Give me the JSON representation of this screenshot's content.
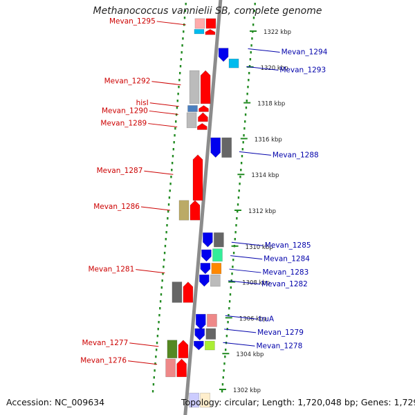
{
  "title": "Methanococcus vannielii SB, complete genome",
  "accession": "Accession: NC_009634",
  "topology": "Topology: circular; Length: 1,720,048 bp; Genes: 1,729",
  "colors": {
    "reverse_label": "#cc0000",
    "forward_label": "#0000aa",
    "ruler_dots": "#228b22",
    "backbone": "#8c8c8c"
  },
  "kbp_marks": [
    {
      "label": "1322 kbp",
      "kbp": 1322
    },
    {
      "label": "1320 kbp",
      "kbp": 1320
    },
    {
      "label": "1318 kbp",
      "kbp": 1318
    },
    {
      "label": "1316 kbp",
      "kbp": 1316
    },
    {
      "label": "1314 kbp",
      "kbp": 1314
    },
    {
      "label": "1312 kbp",
      "kbp": 1312
    },
    {
      "label": "1310 kbp",
      "kbp": 1310
    },
    {
      "label": "1308 kbp",
      "kbp": 1308
    },
    {
      "label": "1306 kbp",
      "kbp": 1306
    },
    {
      "label": "1304 kbp",
      "kbp": 1304
    },
    {
      "label": "1302 kbp",
      "kbp": 1302
    }
  ],
  "reverse_labels": [
    {
      "text": "Mevan_1295",
      "kbp": 1322.35
    },
    {
      "text": "Mevan_1292",
      "kbp": 1319.0
    },
    {
      "text": "hisI",
      "kbp": 1317.8
    },
    {
      "text": "Mevan_1290",
      "kbp": 1317.35
    },
    {
      "text": "Mevan_1289",
      "kbp": 1316.65
    },
    {
      "text": "Mevan_1287",
      "kbp": 1314.0
    },
    {
      "text": "Mevan_1286",
      "kbp": 1312.0
    },
    {
      "text": "Mevan_1281",
      "kbp": 1308.5
    },
    {
      "text": "Mevan_1277",
      "kbp": 1304.4
    },
    {
      "text": "Mevan_1276",
      "kbp": 1303.4
    }
  ],
  "forward_labels": [
    {
      "text": "Mevan_1294",
      "kbp": 1320.9
    },
    {
      "text": "Mevan_1293",
      "kbp": 1319.9
    },
    {
      "text": "Mevan_1288",
      "kbp": 1315.15
    },
    {
      "text": "Mevan_1285",
      "kbp": 1310.1
    },
    {
      "text": "Mevan_1284",
      "kbp": 1309.35
    },
    {
      "text": "Mevan_1283",
      "kbp": 1308.6
    },
    {
      "text": "Mevan_1282",
      "kbp": 1307.95
    },
    {
      "text": "truA",
      "kbp": 1306.0
    },
    {
      "text": "Mevan_1279",
      "kbp": 1305.25
    },
    {
      "text": "Mevan_1278",
      "kbp": 1304.5
    }
  ],
  "genes": [
    {
      "strand": "forward",
      "lane": 2,
      "start": 1322.15,
      "end": 1322.7,
      "color": "#ffaaaa",
      "arrow": false
    },
    {
      "strand": "forward",
      "lane": 1,
      "start": 1322.15,
      "end": 1322.7,
      "color": "#ff0000",
      "arrow": false
    },
    {
      "strand": "forward",
      "lane": 2,
      "start": 1321.85,
      "end": 1322.1,
      "color": "#00bbee",
      "arrow": false
    },
    {
      "strand": "forward",
      "lane": 1,
      "start": 1321.8,
      "end": 1322.1,
      "color": "#ff0000",
      "arrow": true
    },
    {
      "strand": "reverse",
      "lane": 1,
      "start": 1320.3,
      "end": 1321.05,
      "color": "#0000ee",
      "arrow": true
    },
    {
      "strand": "reverse",
      "lane": 2,
      "start": 1319.95,
      "end": 1320.45,
      "color": "#00bbee",
      "arrow": false
    },
    {
      "strand": "forward",
      "lane": 2,
      "start": 1317.95,
      "end": 1319.8,
      "color": "#bbbbbb",
      "arrow": false
    },
    {
      "strand": "forward",
      "lane": 1,
      "start": 1317.95,
      "end": 1319.8,
      "color": "#ff0000",
      "arrow": true
    },
    {
      "strand": "forward",
      "lane": 2,
      "start": 1317.5,
      "end": 1317.85,
      "color": "#4a7fbf",
      "arrow": false
    },
    {
      "strand": "forward",
      "lane": 1,
      "start": 1317.5,
      "end": 1317.85,
      "color": "#ff0000",
      "arrow": true
    },
    {
      "strand": "forward",
      "lane": 2,
      "start": 1316.6,
      "end": 1317.45,
      "color": "#bbbbbb",
      "arrow": false
    },
    {
      "strand": "forward",
      "lane": 1,
      "start": 1316.95,
      "end": 1317.45,
      "color": "#ff0000",
      "arrow": true
    },
    {
      "strand": "forward",
      "lane": 1,
      "start": 1316.5,
      "end": 1316.85,
      "color": "#ff0000",
      "arrow": true
    },
    {
      "strand": "reverse",
      "lane": 1,
      "start": 1314.95,
      "end": 1316.05,
      "color": "#0000ee",
      "arrow": true
    },
    {
      "strand": "reverse",
      "lane": 2,
      "start": 1314.95,
      "end": 1316.05,
      "color": "#666666",
      "arrow": false
    },
    {
      "strand": "forward",
      "lane": 1,
      "start": 1312.55,
      "end": 1315.1,
      "color": "#ff0000",
      "arrow": true
    },
    {
      "strand": "forward",
      "lane": 2,
      "start": 1311.45,
      "end": 1312.55,
      "color": "#bbaa66",
      "arrow": false
    },
    {
      "strand": "forward",
      "lane": 1,
      "start": 1311.45,
      "end": 1312.55,
      "color": "#ff0000",
      "arrow": true
    },
    {
      "strand": "reverse",
      "lane": 1,
      "start": 1309.95,
      "end": 1310.75,
      "color": "#0000ee",
      "arrow": true
    },
    {
      "strand": "reverse",
      "lane": 2,
      "start": 1309.95,
      "end": 1310.75,
      "color": "#666666",
      "arrow": false
    },
    {
      "strand": "reverse",
      "lane": 2,
      "start": 1309.15,
      "end": 1309.85,
      "color": "#33ee99",
      "arrow": false
    },
    {
      "strand": "reverse",
      "lane": 1,
      "start": 1309.15,
      "end": 1309.8,
      "color": "#0000ee",
      "arrow": true
    },
    {
      "strand": "reverse",
      "lane": 1,
      "start": 1308.45,
      "end": 1309.05,
      "color": "#0000ee",
      "arrow": true
    },
    {
      "strand": "reverse",
      "lane": 2,
      "start": 1308.45,
      "end": 1309.05,
      "color": "#ff8800",
      "arrow": false
    },
    {
      "strand": "reverse",
      "lane": 1,
      "start": 1307.75,
      "end": 1308.4,
      "color": "#0000ee",
      "arrow": true
    },
    {
      "strand": "reverse",
      "lane": 2,
      "start": 1307.75,
      "end": 1308.4,
      "color": "#bbbbbb",
      "arrow": false
    },
    {
      "strand": "forward",
      "lane": 2,
      "start": 1306.85,
      "end": 1308.0,
      "color": "#666666",
      "arrow": false
    },
    {
      "strand": "forward",
      "lane": 1,
      "start": 1306.85,
      "end": 1308.0,
      "color": "#ff0000",
      "arrow": true
    },
    {
      "strand": "reverse",
      "lane": 1,
      "start": 1305.35,
      "end": 1306.2,
      "color": "#0000ee",
      "arrow": true
    },
    {
      "strand": "reverse",
      "lane": 2,
      "start": 1305.5,
      "end": 1306.2,
      "color": "#ee8888",
      "arrow": false
    },
    {
      "strand": "reverse",
      "lane": 1,
      "start": 1304.75,
      "end": 1305.4,
      "color": "#0000ee",
      "arrow": true
    },
    {
      "strand": "reverse",
      "lane": 2,
      "start": 1304.8,
      "end": 1305.4,
      "color": "#666666",
      "arrow": false
    },
    {
      "strand": "reverse",
      "lane": 1,
      "start": 1304.2,
      "end": 1304.7,
      "color": "#0000ee",
      "arrow": true
    },
    {
      "strand": "reverse",
      "lane": 2,
      "start": 1304.2,
      "end": 1304.7,
      "color": "#aaee33",
      "arrow": false
    },
    {
      "strand": "forward",
      "lane": 2,
      "start": 1303.75,
      "end": 1304.75,
      "color": "#558822",
      "arrow": false
    },
    {
      "strand": "forward",
      "lane": 1,
      "start": 1303.75,
      "end": 1304.75,
      "color": "#ff0000",
      "arrow": true
    },
    {
      "strand": "forward",
      "lane": 2,
      "start": 1302.7,
      "end": 1303.7,
      "color": "#ee8888",
      "arrow": false
    },
    {
      "strand": "forward",
      "lane": 1,
      "start": 1302.7,
      "end": 1303.7,
      "color": "#ff0000",
      "arrow": true
    },
    {
      "strand": "reverse",
      "lane": 1,
      "start": 1301.0,
      "end": 1301.8,
      "color": "#ccccff",
      "arrow": false
    },
    {
      "strand": "reverse",
      "lane": 2,
      "start": 1301.0,
      "end": 1301.8,
      "color": "#ffeecc",
      "arrow": false
    }
  ]
}
